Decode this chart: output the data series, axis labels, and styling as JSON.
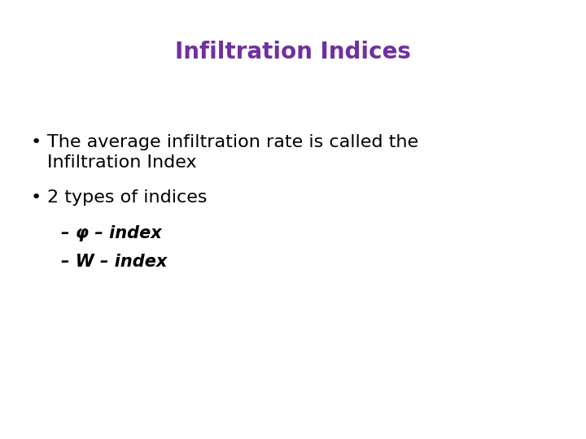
{
  "title": "Infiltration Indices",
  "title_color": "#7030A0",
  "title_fontsize": 20,
  "title_bold": true,
  "background_color": "#ffffff",
  "bullet1_line1": "The average infiltration rate is called the",
  "bullet1_line2": "Infiltration Index",
  "bullet2": "2 types of indices",
  "sub1": "– φ – index",
  "sub2": "– W – index",
  "bullet_fontsize": 16,
  "sub_fontsize": 15,
  "text_color": "#000000"
}
